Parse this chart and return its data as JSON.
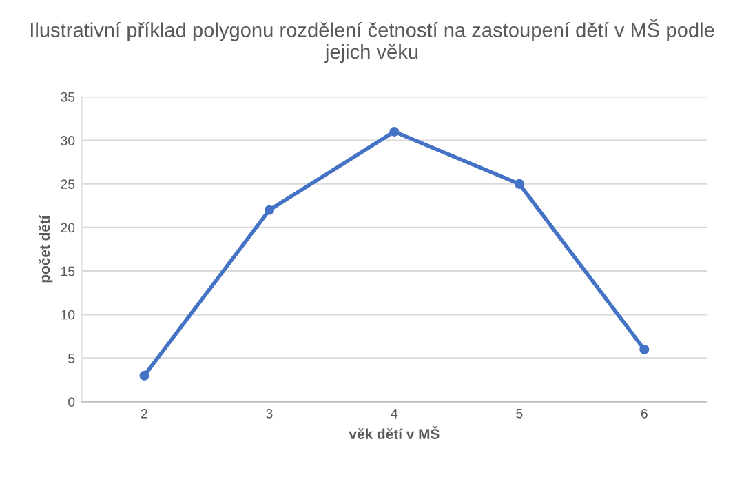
{
  "chart_data": {
    "type": "line",
    "title": "Ilustrativní příklad polygonu rozdělení četností na zastoupení dětí v MŠ podle jejich věku",
    "xlabel": "věk dětí v MŠ",
    "ylabel": "počet dětí",
    "categories": [
      "2",
      "3",
      "4",
      "5",
      "6"
    ],
    "series": [
      {
        "color": "#4472c4",
        "values": [
          3,
          22,
          31,
          25,
          6
        ]
      }
    ],
    "ylim": [
      0,
      35
    ],
    "yticks": [
      0,
      5,
      10,
      15,
      20,
      25,
      30,
      35
    ],
    "grid": "y",
    "marker": "circle",
    "line_style": "solid",
    "legend": false
  }
}
